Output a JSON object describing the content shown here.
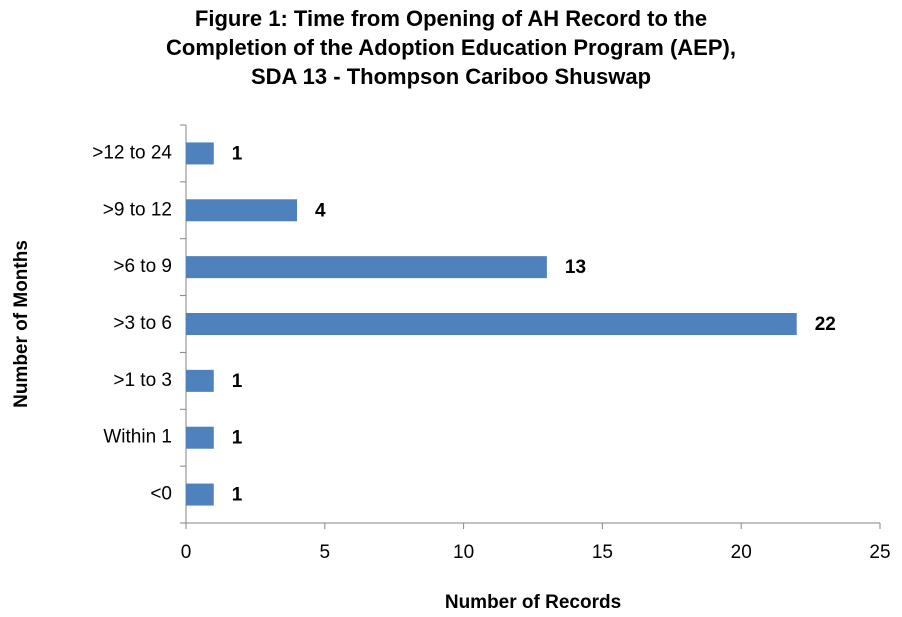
{
  "chart_data": {
    "type": "bar",
    "orientation": "horizontal",
    "title": [
      "Figure 1: Time from Opening of AH Record to the",
      "Completion of the Adoption Education Program (AEP),",
      "SDA 13 - Thompson Cariboo Shuswap"
    ],
    "x_label": "Number of Records",
    "y_label": "Number of Months",
    "categories": [
      ">12 to 24",
      ">9 to 12",
      ">6 to 9",
      ">3 to 6",
      ">1 to 3",
      "Within 1",
      "<0"
    ],
    "values": [
      1,
      4,
      13,
      22,
      1,
      1,
      1
    ],
    "color": "#4f81bd",
    "xlim": [
      0,
      25
    ],
    "xticks": [
      0,
      5,
      10,
      15,
      20,
      25
    ],
    "grid": false
  }
}
